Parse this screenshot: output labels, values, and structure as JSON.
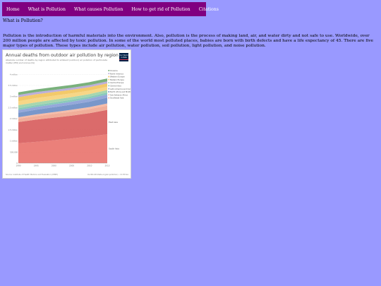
{
  "nav": {
    "items": [
      {
        "label": "Home",
        "name": "nav-home"
      },
      {
        "label": "What is Pollution",
        "name": "nav-what-is-pollution"
      },
      {
        "label": "What causes Pollution",
        "name": "nav-what-causes-pollution"
      },
      {
        "label": "How to get rid of Pollution",
        "name": "nav-how-to-get-rid"
      },
      {
        "label": "Citations",
        "name": "nav-citations"
      }
    ],
    "background": "#800080",
    "text_color": "#ffffff"
  },
  "page": {
    "background": "#9999ff",
    "question": "What is Pollution?",
    "intro": "Pollution is the introduction of harmful materials into the environment. Also, pollution is the process of making land, air, and water dirty and not safe to use. Worldwide, over 200 million people are affected by toxic pollution. In some of the world most polluted places, babies are born with birth defects and have a life expectancy of 45. There are five major types of pollution. These types include air pollution, water pollution, soil pollution, light pollution, and noise pollution."
  },
  "chart_card": {
    "logo_text": "Our World in Data",
    "footer_source": "Source: Institute of Health Metrics and Evaluation (IHME)",
    "footer_url": "OurWorldInData.org/air-pollution/ • CC BY-SA"
  },
  "chart_data": {
    "type": "area",
    "stacked": true,
    "title": "Annual deaths from outdoor air pollution by region",
    "subtitle": "Absolute number of deaths by region attributed to ambient (outdoor) air pollution of particulate matter (PM) and ozone (O₃)",
    "x": [
      1990,
      1995,
      2000,
      2005,
      2010,
      2015
    ],
    "xlim": [
      1990,
      2015
    ],
    "ylim": [
      0,
      4200000
    ],
    "y_ticks": [
      0,
      500000,
      1000000,
      1500000,
      2000000,
      2500000,
      3000000,
      3500000,
      4000000
    ],
    "y_tick_labels": [
      "0",
      "500,000",
      "1 million",
      "1.5 million",
      "2 million",
      "2.5 million",
      "3 million",
      "3.5 million",
      "4 million"
    ],
    "x_tick_labels": [
      "1990",
      "1995",
      "2000",
      "2005",
      "2010",
      "2015"
    ],
    "grid": true,
    "legend_placement": "right (labels at series ends)",
    "series": [
      {
        "name": "South Asia",
        "color": "#e9726c",
        "values": [
          900000,
          960000,
          1030000,
          1110000,
          1200000,
          1300000
        ]
      },
      {
        "name": "East Asia",
        "color": "#d75b5b",
        "values": [
          950000,
          1000000,
          1020000,
          1030000,
          1050000,
          1100000
        ]
      },
      {
        "name": "Southeast Asia",
        "color": "#f0a58f",
        "values": [
          150000,
          160000,
          170000,
          180000,
          185000,
          190000
        ]
      },
      {
        "name": "Sub-Saharan Africa",
        "color": "#f4b6a0",
        "values": [
          70000,
          75000,
          80000,
          85000,
          90000,
          100000
        ]
      },
      {
        "name": "North Africa and Middle East",
        "color": "#6a8cc4",
        "values": [
          200000,
          210000,
          220000,
          230000,
          245000,
          260000
        ]
      },
      {
        "name": "Latin America and Caribbean",
        "color": "#8a9fd6",
        "values": [
          120000,
          125000,
          130000,
          135000,
          140000,
          145000
        ]
      },
      {
        "name": "Central Asia",
        "color": "#7cc4b3",
        "values": [
          80000,
          82000,
          84000,
          85000,
          86000,
          88000
        ]
      },
      {
        "name": "Central Europe",
        "color": "#9cd2a6",
        "values": [
          140000,
          130000,
          125000,
          120000,
          115000,
          110000
        ]
      },
      {
        "name": "Eastern Europe",
        "color": "#f6d27a",
        "values": [
          180000,
          190000,
          180000,
          170000,
          160000,
          150000
        ]
      },
      {
        "name": "Western Europe",
        "color": "#f2c35a",
        "values": [
          180000,
          170000,
          165000,
          160000,
          155000,
          150000
        ]
      },
      {
        "name": "North America",
        "color": "#b5a6d6",
        "values": [
          100000,
          98000,
          95000,
          92000,
          90000,
          88000
        ]
      },
      {
        "name": "Oceania",
        "color": "#6ca86e",
        "values": [
          120000,
          122000,
          125000,
          128000,
          132000,
          135000
        ]
      }
    ]
  }
}
